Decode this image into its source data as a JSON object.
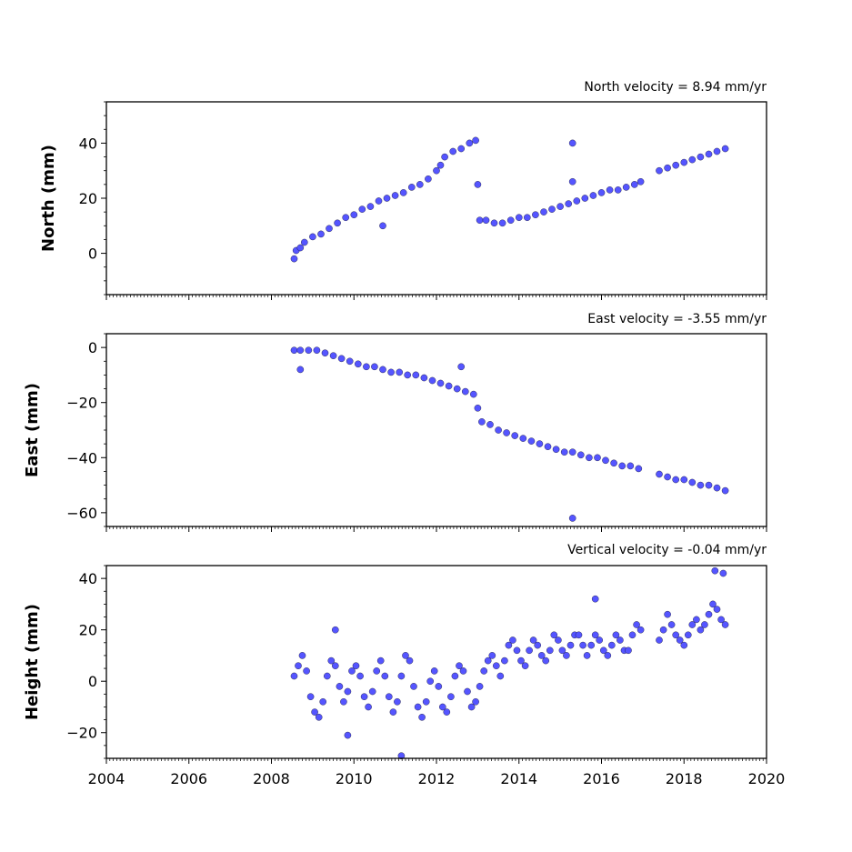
{
  "chart_data": [
    {
      "type": "scatter",
      "title": "North velocity = 8.94 mm/yr",
      "ylabel": "North (mm)",
      "xlim": [
        2004,
        2020
      ],
      "ylim": [
        -15,
        55
      ],
      "yticks": [
        "0",
        "20",
        "40"
      ],
      "ytick_values": [
        0,
        20,
        40
      ],
      "xticks": [],
      "x": [
        2008.55,
        2008.6,
        2008.7,
        2008.8,
        2009.0,
        2009.2,
        2009.4,
        2009.6,
        2009.8,
        2010.0,
        2010.2,
        2010.4,
        2010.6,
        2010.8,
        2011.0,
        2011.2,
        2011.4,
        2011.6,
        2011.8,
        2012.0,
        2012.1,
        2012.2,
        2012.4,
        2012.6,
        2012.8,
        2012.95,
        2013.05,
        2013.2,
        2013.4,
        2013.6,
        2013.8,
        2014.0,
        2014.2,
        2014.4,
        2014.6,
        2014.8,
        2015.0,
        2015.2,
        2015.4,
        2015.6,
        2015.8,
        2016.0,
        2016.2,
        2016.4,
        2016.6,
        2016.8,
        2016.95,
        2017.4,
        2017.6,
        2017.8,
        2018.0,
        2018.2,
        2018.4,
        2018.6,
        2018.8,
        2019.0,
        2015.3,
        2015.3,
        2010.7,
        2013.0
      ],
      "y": [
        -2,
        1,
        2,
        4,
        6,
        7,
        9,
        11,
        13,
        14,
        16,
        17,
        19,
        20,
        21,
        22,
        24,
        25,
        27,
        30,
        32,
        35,
        37,
        38,
        40,
        41,
        12,
        12,
        11,
        11,
        12,
        13,
        13,
        14,
        15,
        16,
        17,
        18,
        19,
        20,
        21,
        22,
        23,
        23,
        24,
        25,
        26,
        30,
        31,
        32,
        33,
        34,
        35,
        36,
        37,
        38,
        40,
        26,
        10,
        25
      ],
      "color": "#5555ff"
    },
    {
      "type": "scatter",
      "title": "East velocity = -3.55 mm/yr",
      "ylabel": "East (mm)",
      "xlim": [
        2004,
        2020
      ],
      "ylim": [
        -65,
        5
      ],
      "yticks": [
        "0",
        "−20",
        "−40",
        "−60"
      ],
      "ytick_values": [
        0,
        -20,
        -40,
        -60
      ],
      "xticks": [],
      "x": [
        2008.55,
        2008.7,
        2008.9,
        2009.1,
        2009.3,
        2009.5,
        2009.7,
        2009.9,
        2010.1,
        2010.3,
        2010.5,
        2010.7,
        2010.9,
        2011.1,
        2011.3,
        2011.5,
        2011.7,
        2011.9,
        2012.1,
        2012.3,
        2012.5,
        2012.7,
        2012.9,
        2013.0,
        2013.1,
        2013.3,
        2013.5,
        2013.7,
        2013.9,
        2014.1,
        2014.3,
        2014.5,
        2014.7,
        2014.9,
        2015.1,
        2015.3,
        2015.5,
        2015.7,
        2015.9,
        2016.1,
        2016.3,
        2016.5,
        2016.7,
        2016.9,
        2017.4,
        2017.6,
        2017.8,
        2018.0,
        2018.2,
        2018.4,
        2018.6,
        2018.8,
        2019.0,
        2015.3,
        2012.6,
        2008.7
      ],
      "y": [
        -1,
        -1,
        -1,
        -1,
        -2,
        -3,
        -4,
        -5,
        -6,
        -7,
        -7,
        -8,
        -9,
        -9,
        -10,
        -10,
        -11,
        -12,
        -13,
        -14,
        -15,
        -16,
        -17,
        -22,
        -27,
        -28,
        -30,
        -31,
        -32,
        -33,
        -34,
        -35,
        -36,
        -37,
        -38,
        -38,
        -39,
        -40,
        -40,
        -41,
        -42,
        -43,
        -43,
        -44,
        -46,
        -47,
        -48,
        -48,
        -49,
        -50,
        -50,
        -51,
        -52,
        -62,
        -7,
        -8
      ],
      "color": "#5555ff"
    },
    {
      "type": "scatter",
      "title": "Vertical velocity = -0.04 mm/yr",
      "ylabel": "Height (mm)",
      "xlim": [
        2004,
        2020
      ],
      "ylim": [
        -30,
        45
      ],
      "yticks": [
        "−20",
        "0",
        "20",
        "40"
      ],
      "ytick_values": [
        -20,
        0,
        20,
        40
      ],
      "xticks": [
        "2004",
        "2006",
        "2008",
        "2010",
        "2012",
        "2014",
        "2016",
        "2018",
        "2020"
      ],
      "x": [
        2008.55,
        2008.65,
        2008.75,
        2008.85,
        2008.95,
        2009.05,
        2009.15,
        2009.25,
        2009.35,
        2009.45,
        2009.55,
        2009.65,
        2009.75,
        2009.85,
        2009.95,
        2010.05,
        2010.15,
        2010.25,
        2010.35,
        2010.45,
        2010.55,
        2010.65,
        2010.75,
        2010.85,
        2010.95,
        2011.05,
        2011.15,
        2011.25,
        2011.35,
        2011.45,
        2011.55,
        2011.65,
        2011.75,
        2011.85,
        2011.95,
        2012.05,
        2012.15,
        2012.25,
        2012.35,
        2012.45,
        2012.55,
        2012.65,
        2012.75,
        2012.85,
        2012.95,
        2013.05,
        2013.15,
        2013.25,
        2013.35,
        2013.45,
        2013.55,
        2013.65,
        2013.75,
        2013.85,
        2013.95,
        2014.05,
        2014.15,
        2014.25,
        2014.35,
        2014.45,
        2014.55,
        2014.65,
        2014.75,
        2014.85,
        2014.95,
        2015.05,
        2015.15,
        2015.25,
        2015.35,
        2015.45,
        2015.55,
        2015.65,
        2015.75,
        2015.85,
        2015.95,
        2016.05,
        2016.15,
        2016.25,
        2016.35,
        2016.45,
        2016.55,
        2016.65,
        2016.75,
        2016.85,
        2016.95,
        2017.4,
        2017.5,
        2017.6,
        2017.7,
        2017.8,
        2017.9,
        2018.0,
        2018.1,
        2018.2,
        2018.3,
        2018.4,
        2018.5,
        2018.6,
        2018.7,
        2018.8,
        2018.9,
        2019.0,
        2011.15,
        2009.55,
        2009.85,
        2015.85,
        2018.75,
        2018.95
      ],
      "y": [
        2,
        6,
        10,
        4,
        -6,
        -12,
        -14,
        -8,
        2,
        8,
        6,
        -2,
        -8,
        -4,
        4,
        6,
        2,
        -6,
        -10,
        -4,
        4,
        8,
        2,
        -6,
        -12,
        -8,
        2,
        10,
        8,
        -2,
        -10,
        -14,
        -8,
        0,
        4,
        -2,
        -10,
        -12,
        -6,
        2,
        6,
        4,
        -4,
        -10,
        -8,
        -2,
        4,
        8,
        10,
        6,
        2,
        8,
        14,
        16,
        12,
        8,
        6,
        12,
        16,
        14,
        10,
        8,
        12,
        18,
        16,
        12,
        10,
        14,
        18,
        18,
        14,
        10,
        14,
        18,
        16,
        12,
        10,
        14,
        18,
        16,
        12,
        12,
        18,
        22,
        20,
        16,
        20,
        26,
        22,
        18,
        16,
        14,
        18,
        22,
        24,
        20,
        22,
        26,
        30,
        28,
        24,
        22,
        -29,
        20,
        -21,
        32,
        43,
        42
      ],
      "color": "#5555ff"
    }
  ]
}
